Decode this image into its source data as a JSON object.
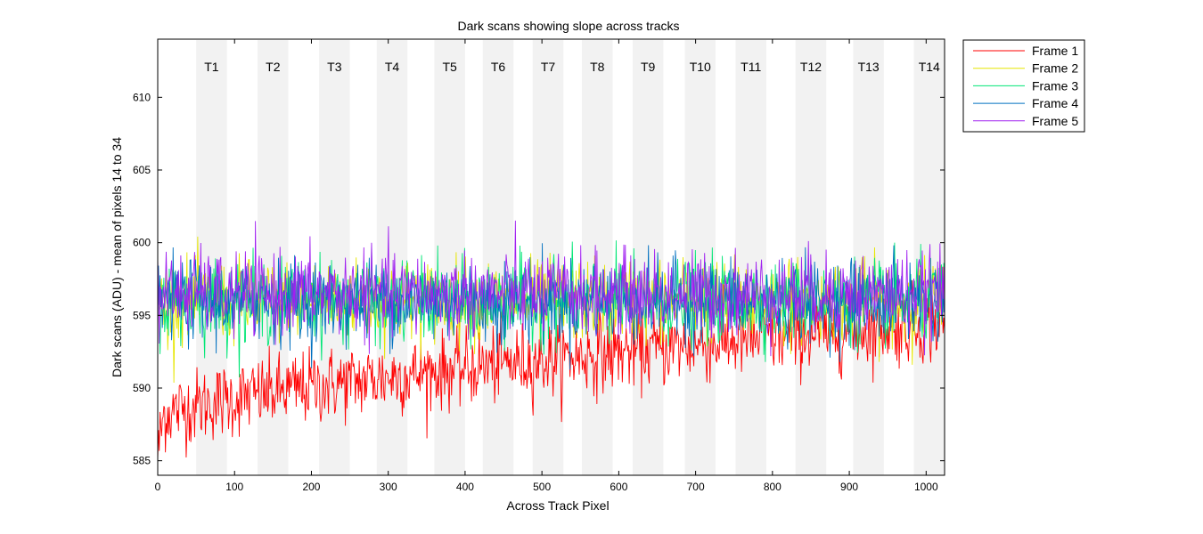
{
  "chart_data": {
    "type": "line",
    "title": "Dark scans showing slope across tracks",
    "xlabel": "Across Track Pixel",
    "ylabel": "Dark scans (ADU) - mean of pixels 14 to 34",
    "xlim": [
      0,
      1024
    ],
    "ylim": [
      584,
      614
    ],
    "xticks": [
      0,
      100,
      200,
      300,
      400,
      500,
      600,
      700,
      800,
      900,
      1000
    ],
    "yticks": [
      585,
      590,
      595,
      600,
      605,
      610
    ],
    "grid": false,
    "legend_position": "outside-top-right",
    "tracks": [
      {
        "label": "T1",
        "x": [
          50,
          90
        ]
      },
      {
        "label": "T2",
        "x": [
          130,
          170
        ]
      },
      {
        "label": "T3",
        "x": [
          210,
          250
        ]
      },
      {
        "label": "T4",
        "x": [
          285,
          325
        ]
      },
      {
        "label": "T5",
        "x": [
          360,
          400
        ]
      },
      {
        "label": "T6",
        "x": [
          423,
          463
        ]
      },
      {
        "label": "T7",
        "x": [
          488,
          528
        ]
      },
      {
        "label": "T8",
        "x": [
          552,
          592
        ]
      },
      {
        "label": "T9",
        "x": [
          618,
          658
        ]
      },
      {
        "label": "T10",
        "x": [
          686,
          726
        ]
      },
      {
        "label": "T11",
        "x": [
          752,
          792
        ]
      },
      {
        "label": "T12",
        "x": [
          830,
          870
        ]
      },
      {
        "label": "T13",
        "x": [
          905,
          945
        ]
      },
      {
        "label": "T14",
        "x": [
          984,
          1024
        ]
      }
    ],
    "series": [
      {
        "name": "Frame 1",
        "color": "#ff0000",
        "start": 588,
        "end": 594.5,
        "noise": 1.3,
        "samples": 1024
      },
      {
        "name": "Frame 2",
        "color": "#e6e600",
        "start": 596,
        "end": 596,
        "noise": 1.4,
        "samples": 1024
      },
      {
        "name": "Frame 3",
        "color": "#00e676",
        "start": 596,
        "end": 596,
        "noise": 1.4,
        "samples": 1024
      },
      {
        "name": "Frame 4",
        "color": "#0070c0",
        "start": 596,
        "end": 596,
        "noise": 1.4,
        "samples": 1024
      },
      {
        "name": "Frame 5",
        "color": "#a020f0",
        "start": 596.5,
        "end": 596.5,
        "noise": 1.4,
        "samples": 1024
      }
    ]
  }
}
